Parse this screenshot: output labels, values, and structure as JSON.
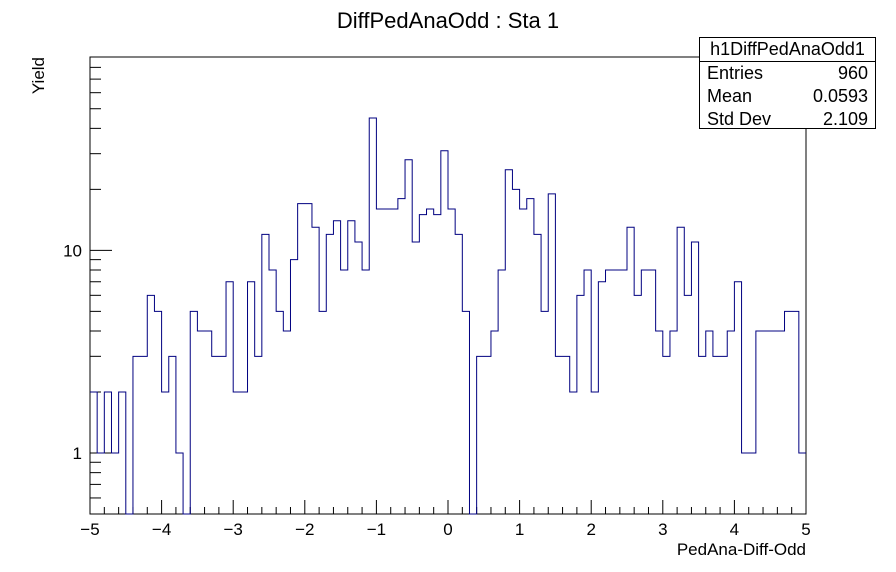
{
  "chart_data": {
    "type": "histogram",
    "title": "DiffPedAnaOdd : Sta 1",
    "xlabel": "PedAna-Diff-Odd",
    "ylabel": "Yield",
    "xlim": [
      -5,
      5
    ],
    "ylim": [
      0.5,
      90
    ],
    "yscale": "log",
    "bin_width": 0.1,
    "x_ticks": [
      "-5",
      "-4",
      "-3",
      "-2",
      "-1",
      "0",
      "1",
      "2",
      "3",
      "4",
      "5"
    ],
    "y_ticks": [
      "1",
      "10"
    ],
    "line_color": "#000080",
    "values": [
      2,
      1,
      2,
      1,
      2,
      0,
      3,
      3,
      6,
      5,
      2,
      3,
      1,
      0,
      5,
      4,
      4,
      3,
      3,
      7,
      2,
      2,
      7,
      3,
      12,
      8,
      5,
      4,
      9,
      17,
      17,
      13,
      5,
      12,
      14,
      8,
      14,
      11,
      8,
      45,
      16,
      16,
      16,
      18,
      28,
      11,
      15,
      16,
      15,
      31,
      16,
      12,
      5,
      0,
      3,
      3,
      4,
      8,
      25,
      20,
      16,
      18,
      12,
      5,
      19,
      3,
      3,
      2,
      6,
      8,
      2,
      7,
      8,
      8,
      8,
      13,
      6,
      8,
      8,
      4,
      3,
      4,
      13,
      6,
      11,
      3,
      4,
      3,
      3,
      4,
      7,
      1,
      1,
      4,
      4,
      4,
      4,
      5,
      5,
      1
    ],
    "legend": {
      "name": "h1DiffPedAnaOdd1",
      "entries_label": "Entries",
      "entries": "960",
      "mean_label": "Mean",
      "mean": "0.0593",
      "stddev_label": "Std Dev",
      "stddev": "2.109"
    }
  }
}
